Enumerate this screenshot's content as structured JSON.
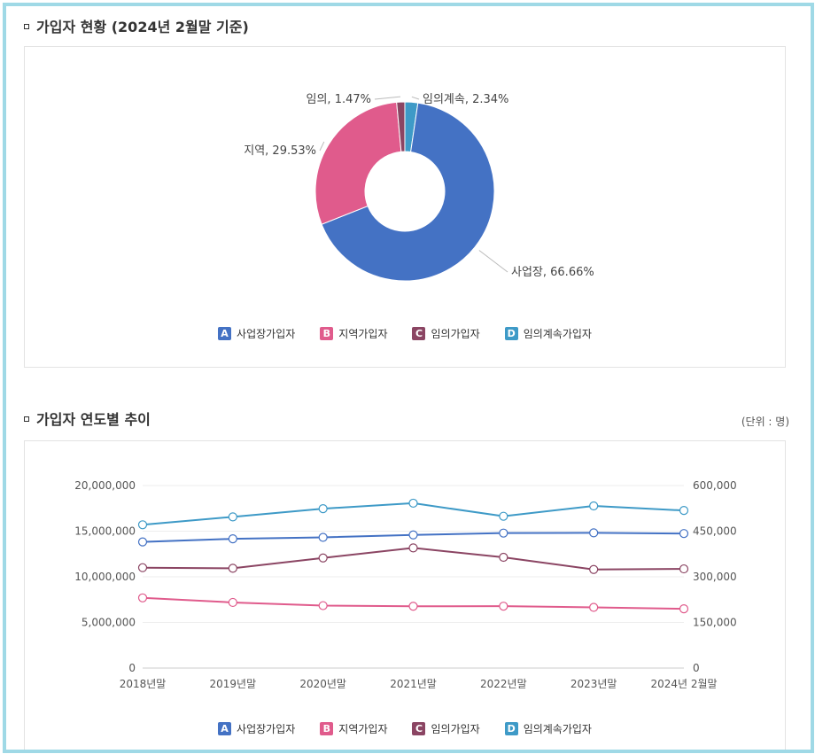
{
  "section1": {
    "title": "가입자 현황 (2024년 2월말 기준)"
  },
  "section2": {
    "title": "가입자 연도별 추이",
    "unit": "(단위 : 명)"
  },
  "legend": [
    {
      "key": "A",
      "label": "사업장가입자",
      "color": "#4472c4"
    },
    {
      "key": "B",
      "label": "지역가입자",
      "color": "#e05b8c"
    },
    {
      "key": "C",
      "label": "임의가입자",
      "color": "#8b4563"
    },
    {
      "key": "D",
      "label": "임의계속가입자",
      "color": "#3e9ac7"
    }
  ],
  "chart_data": [
    {
      "type": "pie",
      "donut": true,
      "slices": [
        {
          "name": "사업장",
          "value": 66.66,
          "label": "사업장, 66.66%",
          "color": "#4472c4"
        },
        {
          "name": "지역",
          "value": 29.53,
          "label": "지역, 29.53%",
          "color": "#e05b8c"
        },
        {
          "name": "임의",
          "value": 1.47,
          "label": "임의, 1.47%",
          "color": "#8b4563"
        },
        {
          "name": "임의계속",
          "value": 2.34,
          "label": "임의계속, 2.34%",
          "color": "#3e9ac7"
        }
      ]
    },
    {
      "type": "line",
      "categories": [
        "2018년말",
        "2019년말",
        "2020년말",
        "2021년말",
        "2022년말",
        "2023년말",
        "2024년 2월말"
      ],
      "y_left": {
        "range": [
          0,
          20000000
        ],
        "ticks": [
          "0",
          "5,000,000",
          "10,000,000",
          "15,000,000",
          "20,000,000"
        ]
      },
      "y_right": {
        "range": [
          0,
          600000
        ],
        "ticks": [
          "0",
          "150,000",
          "300,000",
          "450,000",
          "600,000"
        ]
      },
      "series": [
        {
          "name": "사업장가입자",
          "axis": "left",
          "color": "#4472c4",
          "values": [
            13820000,
            14160000,
            14320000,
            14590000,
            14790000,
            14820000,
            14740000
          ]
        },
        {
          "name": "지역가입자",
          "axis": "left",
          "color": "#e05b8c",
          "values": [
            7690000,
            7190000,
            6840000,
            6770000,
            6780000,
            6650000,
            6490000
          ]
        },
        {
          "name": "임의가입자",
          "axis": "right",
          "color": "#8b4563",
          "values": [
            330000,
            328000,
            362000,
            395000,
            364000,
            324000,
            326000
          ]
        },
        {
          "name": "임의계속가입자",
          "axis": "right",
          "color": "#3e9ac7",
          "values": [
            471000,
            497000,
            524000,
            542000,
            499000,
            533000,
            518000
          ]
        }
      ],
      "grid": true
    }
  ]
}
